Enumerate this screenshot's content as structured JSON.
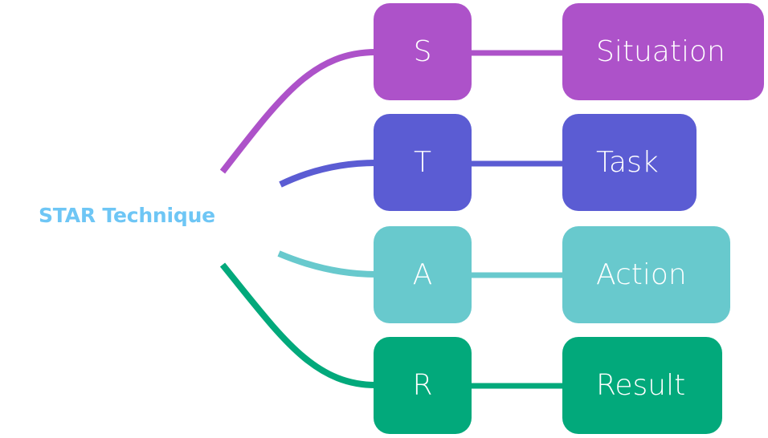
{
  "root": {
    "label": "STAR Technique",
    "color": "#6ec6f5"
  },
  "rows": [
    {
      "letter": "S",
      "word": "Situation",
      "color": "#ad52c9"
    },
    {
      "letter": "T",
      "word": "Task",
      "color": "#5b5cd3"
    },
    {
      "letter": "A",
      "word": "Action",
      "color": "#68c9cd"
    },
    {
      "letter": "R",
      "word": "Result",
      "color": "#02a97b"
    }
  ]
}
